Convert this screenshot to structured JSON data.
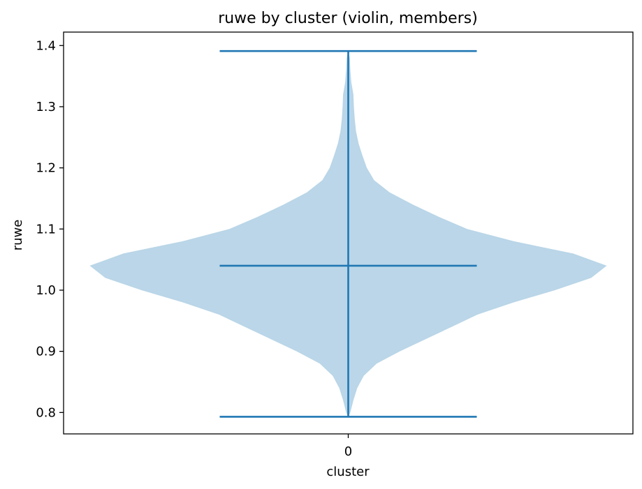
{
  "chart_data": {
    "type": "violin",
    "title": "ruwe by cluster (violin, members)",
    "xlabel": "cluster",
    "ylabel": "ruwe",
    "categories": [
      "0"
    ],
    "ylim": [
      0.765,
      1.422
    ],
    "yticks": [
      "0.8",
      "0.9",
      "1.0",
      "1.1",
      "1.2",
      "1.3",
      "1.4"
    ],
    "grid": false,
    "legend": "none",
    "series": [
      {
        "category": "0",
        "min": 0.793,
        "max": 1.391,
        "median": 1.04,
        "density": [
          {
            "y": 0.793,
            "w": 0.0
          },
          {
            "y": 0.8,
            "w": 0.008
          },
          {
            "y": 0.82,
            "w": 0.02
          },
          {
            "y": 0.84,
            "w": 0.035
          },
          {
            "y": 0.86,
            "w": 0.06
          },
          {
            "y": 0.88,
            "w": 0.11
          },
          {
            "y": 0.9,
            "w": 0.2
          },
          {
            "y": 0.92,
            "w": 0.3
          },
          {
            "y": 0.94,
            "w": 0.4
          },
          {
            "y": 0.96,
            "w": 0.5
          },
          {
            "y": 0.98,
            "w": 0.64
          },
          {
            "y": 1.0,
            "w": 0.8
          },
          {
            "y": 1.02,
            "w": 0.94
          },
          {
            "y": 1.04,
            "w": 1.0
          },
          {
            "y": 1.06,
            "w": 0.87
          },
          {
            "y": 1.08,
            "w": 0.64
          },
          {
            "y": 1.1,
            "w": 0.46
          },
          {
            "y": 1.12,
            "w": 0.35
          },
          {
            "y": 1.14,
            "w": 0.25
          },
          {
            "y": 1.16,
            "w": 0.16
          },
          {
            "y": 1.18,
            "w": 0.1
          },
          {
            "y": 1.2,
            "w": 0.072
          },
          {
            "y": 1.22,
            "w": 0.055
          },
          {
            "y": 1.24,
            "w": 0.04
          },
          {
            "y": 1.26,
            "w": 0.03
          },
          {
            "y": 1.28,
            "w": 0.025
          },
          {
            "y": 1.3,
            "w": 0.022
          },
          {
            "y": 1.32,
            "w": 0.02
          },
          {
            "y": 1.34,
            "w": 0.012
          },
          {
            "y": 1.36,
            "w": 0.008
          },
          {
            "y": 1.38,
            "w": 0.006
          },
          {
            "y": 1.391,
            "w": 0.0
          }
        ]
      }
    ],
    "colors": {
      "body": "#bad6e8",
      "lines": "#1f77b4",
      "axes": "#000000"
    }
  }
}
